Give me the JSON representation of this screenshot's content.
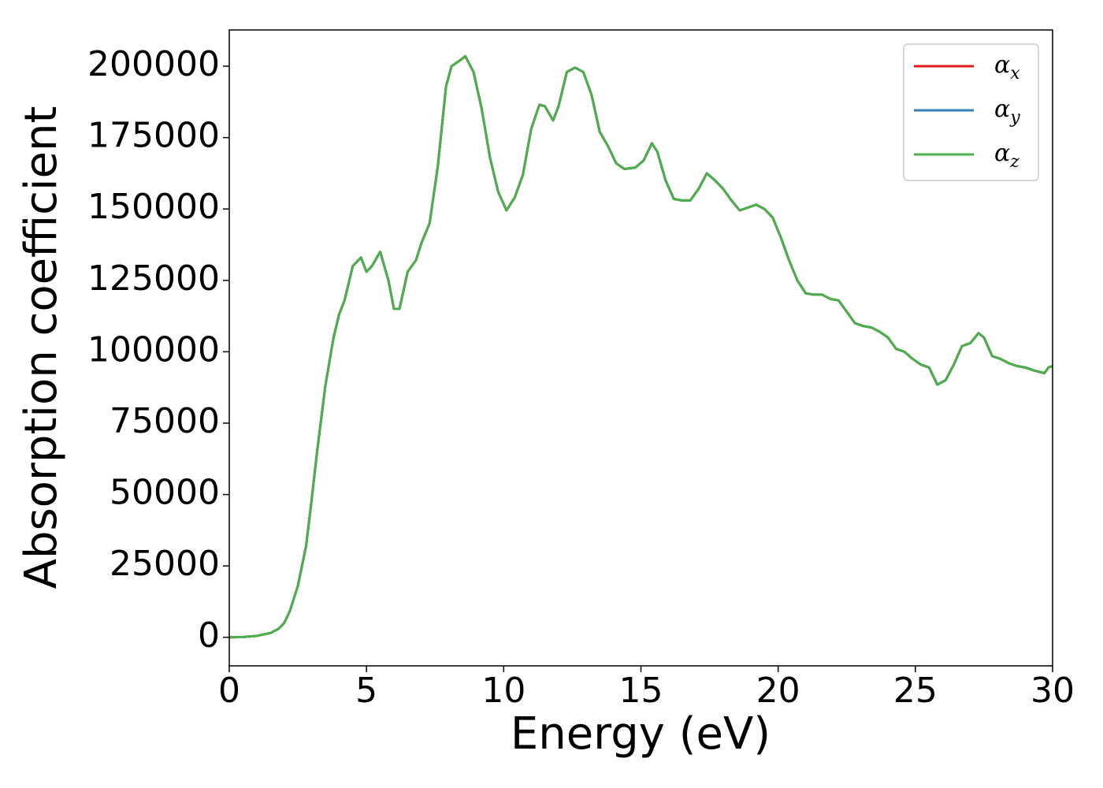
{
  "chart_data": {
    "type": "line",
    "xlabel": "Energy (eV)",
    "ylabel": "Absorption coefficient",
    "x": [
      0,
      0.5,
      1,
      1.5,
      1.8,
      2,
      2.2,
      2.5,
      2.8,
      3,
      3.2,
      3.5,
      3.8,
      4,
      4.2,
      4.5,
      4.8,
      5,
      5.2,
      5.5,
      5.8,
      6,
      6.2,
      6.5,
      6.8,
      7,
      7.3,
      7.6,
      7.9,
      8.1,
      8.4,
      8.6,
      8.9,
      9.2,
      9.5,
      9.8,
      10.1,
      10.4,
      10.7,
      11,
      11.3,
      11.5,
      11.8,
      12,
      12.3,
      12.6,
      12.9,
      13.2,
      13.5,
      13.8,
      14.1,
      14.4,
      14.8,
      15.1,
      15.4,
      15.6,
      15.9,
      16.2,
      16.5,
      16.8,
      17.1,
      17.4,
      17.7,
      18,
      18.3,
      18.6,
      18.9,
      19.2,
      19.5,
      19.8,
      20.1,
      20.4,
      20.7,
      21,
      21.3,
      21.6,
      21.9,
      22.2,
      22.5,
      22.8,
      23.1,
      23.4,
      23.7,
      24,
      24.3,
      24.6,
      24.9,
      25.2,
      25.5,
      25.8,
      26.1,
      26.4,
      26.7,
      27,
      27.3,
      27.5,
      27.8,
      28.1,
      28.4,
      28.7,
      29,
      29.3,
      29.5,
      29.7,
      29.85,
      30
    ],
    "series": [
      {
        "name": "αx",
        "color": "#e41a1c",
        "values": [
          0,
          100,
          500,
          1500,
          3000,
          5000,
          9000,
          18000,
          32000,
          48000,
          65000,
          88000,
          105000,
          113000,
          118000,
          130000,
          133000,
          128000,
          130000,
          135000,
          125000,
          115000,
          115000,
          128000,
          132000,
          138000,
          145000,
          165000,
          193000,
          200000,
          202000,
          203500,
          198000,
          185000,
          168000,
          156000,
          149500,
          154000,
          162000,
          178000,
          186500,
          186000,
          181000,
          186000,
          198000,
          199500,
          198000,
          190000,
          177000,
          172000,
          166000,
          164000,
          164500,
          167000,
          173000,
          170000,
          160000,
          153500,
          153000,
          153000,
          157000,
          162500,
          160000,
          157000,
          153000,
          149500,
          150500,
          151500,
          150000,
          147000,
          140000,
          132000,
          125000,
          120500,
          120000,
          120000,
          118500,
          118000,
          114000,
          110000,
          109000,
          108500,
          107000,
          105000,
          101000,
          100000,
          97500,
          95500,
          94500,
          88500,
          90000,
          95500,
          102000,
          103000,
          106500,
          105000,
          98500,
          97500,
          96000,
          95000,
          94500,
          93500,
          93000,
          92500,
          94500,
          95000
        ]
      },
      {
        "name": "αy",
        "color": "#377eb8",
        "values": [
          0,
          100,
          500,
          1500,
          3000,
          5000,
          9000,
          18000,
          32000,
          48000,
          65000,
          88000,
          105000,
          113000,
          118000,
          130000,
          133000,
          128000,
          130000,
          135000,
          125000,
          115000,
          115000,
          128000,
          132000,
          138000,
          145000,
          165000,
          193000,
          200000,
          202000,
          203500,
          198000,
          185000,
          168000,
          156000,
          149500,
          154000,
          162000,
          178000,
          186500,
          186000,
          181000,
          186000,
          198000,
          199500,
          198000,
          190000,
          177000,
          172000,
          166000,
          164000,
          164500,
          167000,
          173000,
          170000,
          160000,
          153500,
          153000,
          153000,
          157000,
          162500,
          160000,
          157000,
          153000,
          149500,
          150500,
          151500,
          150000,
          147000,
          140000,
          132000,
          125000,
          120500,
          120000,
          120000,
          118500,
          118000,
          114000,
          110000,
          109000,
          108500,
          107000,
          105000,
          101000,
          100000,
          97500,
          95500,
          94500,
          88500,
          90000,
          95500,
          102000,
          103000,
          106500,
          105000,
          98500,
          97500,
          96000,
          95000,
          94500,
          93500,
          93000,
          92500,
          94500,
          95000
        ]
      },
      {
        "name": "αz",
        "color": "#4daf4a",
        "values": [
          0,
          100,
          500,
          1500,
          3000,
          5000,
          9000,
          18000,
          32000,
          48000,
          65000,
          88000,
          105000,
          113000,
          118000,
          130000,
          133000,
          128000,
          130000,
          135000,
          125000,
          115000,
          115000,
          128000,
          132000,
          138000,
          145000,
          165000,
          193000,
          200000,
          202000,
          203500,
          198000,
          185000,
          168000,
          156000,
          149500,
          154000,
          162000,
          178000,
          186500,
          186000,
          181000,
          186000,
          198000,
          199500,
          198000,
          190000,
          177000,
          172000,
          166000,
          164000,
          164500,
          167000,
          173000,
          170000,
          160000,
          153500,
          153000,
          153000,
          157000,
          162500,
          160000,
          157000,
          153000,
          149500,
          150500,
          151500,
          150000,
          147000,
          140000,
          132000,
          125000,
          120500,
          120000,
          120000,
          118500,
          118000,
          114000,
          110000,
          109000,
          108500,
          107000,
          105000,
          101000,
          100000,
          97500,
          95500,
          94500,
          88500,
          90000,
          95500,
          102000,
          103000,
          106500,
          105000,
          98500,
          97500,
          96000,
          95000,
          94500,
          93500,
          93000,
          92500,
          94500,
          95000
        ]
      }
    ],
    "xlim": [
      0,
      30
    ],
    "xticks": [
      0,
      5,
      10,
      15,
      20,
      25,
      30
    ],
    "ylim": [
      -10000,
      212700
    ],
    "yticks": [
      0,
      25000,
      50000,
      75000,
      100000,
      125000,
      150000,
      175000,
      200000
    ],
    "grid": false,
    "legend": "upper right"
  }
}
